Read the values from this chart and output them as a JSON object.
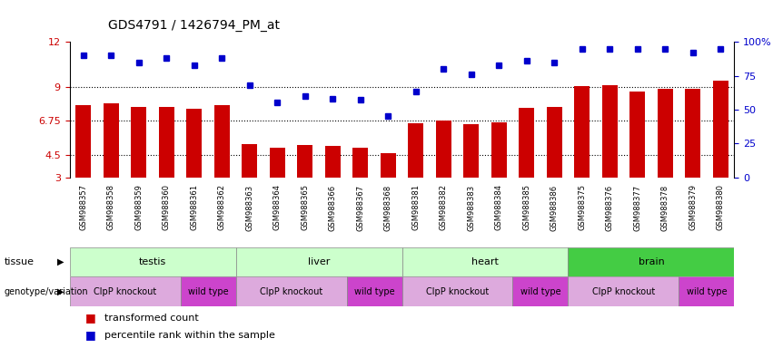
{
  "title": "GDS4791 / 1426794_PM_at",
  "samples": [
    "GSM988357",
    "GSM988358",
    "GSM988359",
    "GSM988360",
    "GSM988361",
    "GSM988362",
    "GSM988363",
    "GSM988364",
    "GSM988365",
    "GSM988366",
    "GSM988367",
    "GSM988368",
    "GSM988381",
    "GSM988382",
    "GSM988383",
    "GSM988384",
    "GSM988385",
    "GSM988386",
    "GSM988375",
    "GSM988376",
    "GSM988377",
    "GSM988378",
    "GSM988379",
    "GSM988380"
  ],
  "bar_values": [
    7.8,
    7.9,
    7.7,
    7.65,
    7.55,
    7.8,
    5.2,
    4.95,
    5.15,
    5.1,
    5.0,
    4.6,
    6.6,
    6.75,
    6.55,
    6.65,
    7.6,
    7.65,
    9.05,
    9.1,
    8.7,
    8.85,
    8.9,
    9.4
  ],
  "percentile_values_pct": [
    90,
    90,
    85,
    88,
    83,
    88,
    68,
    55,
    60,
    58,
    57,
    45,
    63,
    80,
    76,
    83,
    86,
    85,
    95,
    95,
    95,
    95,
    92,
    95
  ],
  "ylim_left": [
    3,
    12
  ],
  "yticks_left": [
    3,
    4.5,
    6.75,
    9,
    12
  ],
  "ytick_labels_left": [
    "3",
    "4.5",
    "6.75",
    "9",
    "12"
  ],
  "yticks_right": [
    0,
    25,
    50,
    75,
    100
  ],
  "ytick_labels_right": [
    "0",
    "25",
    "50",
    "75",
    "100%"
  ],
  "bar_color": "#CC0000",
  "dot_color": "#0000CC",
  "bg_color": "#ffffff",
  "hline_y": [
    4.5,
    6.75,
    9
  ],
  "tissue_groups": [
    {
      "label": "testis",
      "start": 0,
      "end": 5,
      "color": "#ccffcc"
    },
    {
      "label": "liver",
      "start": 6,
      "end": 11,
      "color": "#ccffcc"
    },
    {
      "label": "heart",
      "start": 12,
      "end": 17,
      "color": "#ccffcc"
    },
    {
      "label": "brain",
      "start": 18,
      "end": 23,
      "color": "#44cc44"
    }
  ],
  "genotype_groups": [
    {
      "label": "ClpP knockout",
      "start": 0,
      "end": 3,
      "color": "#ddaadd"
    },
    {
      "label": "wild type",
      "start": 4,
      "end": 5,
      "color": "#cc44cc"
    },
    {
      "label": "ClpP knockout",
      "start": 6,
      "end": 9,
      "color": "#ddaadd"
    },
    {
      "label": "wild type",
      "start": 10,
      "end": 11,
      "color": "#cc44cc"
    },
    {
      "label": "ClpP knockout",
      "start": 12,
      "end": 15,
      "color": "#ddaadd"
    },
    {
      "label": "wild type",
      "start": 16,
      "end": 17,
      "color": "#cc44cc"
    },
    {
      "label": "ClpP knockout",
      "start": 18,
      "end": 21,
      "color": "#ddaadd"
    },
    {
      "label": "wild type",
      "start": 22,
      "end": 23,
      "color": "#cc44cc"
    }
  ],
  "legend_items": [
    {
      "label": "transformed count",
      "color": "#CC0000"
    },
    {
      "label": "percentile rank within the sample",
      "color": "#0000CC"
    }
  ]
}
